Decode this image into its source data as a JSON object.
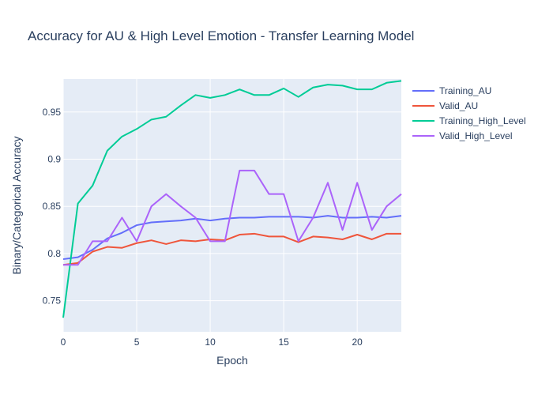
{
  "chart_data": {
    "type": "line",
    "title": "Accuracy for AU & High Level Emotion - Transfer Learning Model",
    "xlabel": "Epoch",
    "ylabel": "Binary/Categorical Accuracy",
    "xlim": [
      0,
      23
    ],
    "ylim": [
      0.717,
      0.985
    ],
    "x_ticks": [
      0,
      5,
      10,
      15,
      20
    ],
    "y_ticks": [
      0.75,
      0.8,
      0.85,
      0.9,
      0.95
    ],
    "y_tick_labels": [
      "0.75",
      "0.8",
      "0.85",
      "0.9",
      "0.95"
    ],
    "grid": true,
    "legend_position": "top-right",
    "x": [
      0,
      1,
      2,
      3,
      4,
      5,
      6,
      7,
      8,
      9,
      10,
      11,
      12,
      13,
      14,
      15,
      16,
      17,
      18,
      19,
      20,
      21,
      22,
      23
    ],
    "series": [
      {
        "name": "Training_AU",
        "color": "#636efa",
        "values": [
          0.794,
          0.796,
          0.804,
          0.816,
          0.822,
          0.83,
          0.833,
          0.834,
          0.835,
          0.837,
          0.835,
          0.837,
          0.838,
          0.838,
          0.839,
          0.839,
          0.839,
          0.838,
          0.84,
          0.838,
          0.838,
          0.839,
          0.838,
          0.84
        ]
      },
      {
        "name": "Valid_AU",
        "color": "#ef553b",
        "values": [
          0.788,
          0.79,
          0.802,
          0.807,
          0.806,
          0.811,
          0.814,
          0.81,
          0.814,
          0.813,
          0.815,
          0.814,
          0.82,
          0.821,
          0.818,
          0.818,
          0.812,
          0.818,
          0.817,
          0.815,
          0.82,
          0.815,
          0.821,
          0.821
        ]
      },
      {
        "name": "Training_High_Level",
        "color": "#00cc96",
        "values": [
          0.732,
          0.853,
          0.872,
          0.909,
          0.924,
          0.932,
          0.942,
          0.945,
          0.957,
          0.968,
          0.965,
          0.968,
          0.974,
          0.968,
          0.968,
          0.975,
          0.966,
          0.976,
          0.979,
          0.978,
          0.974,
          0.974,
          0.981,
          0.983
        ]
      },
      {
        "name": "Valid_High_Level",
        "color": "#ab63fa",
        "values": [
          0.788,
          0.788,
          0.813,
          0.813,
          0.838,
          0.813,
          0.85,
          0.863,
          0.85,
          0.838,
          0.813,
          0.813,
          0.888,
          0.888,
          0.863,
          0.863,
          0.813,
          0.838,
          0.875,
          0.825,
          0.875,
          0.825,
          0.85,
          0.863
        ]
      }
    ]
  }
}
